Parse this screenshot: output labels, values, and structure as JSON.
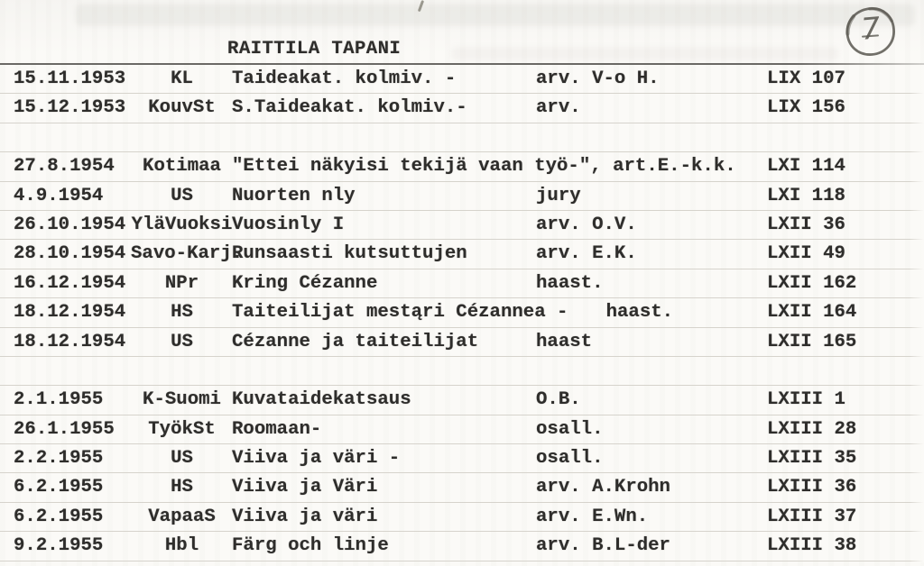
{
  "page_number": "7",
  "card": {
    "title": "RAITTILA TAPANI",
    "table": {
      "rows": [
        {
          "date": "15.11.1953",
          "source": "KL",
          "title": "Taideakat. kolmiv. -",
          "annotation": "arv. V-o H.",
          "reference": "LIX 107"
        },
        {
          "date": "15.12.1953",
          "source": "KouvSt",
          "title": "S.Taideakat. kolmiv.-",
          "annotation": "arv.",
          "reference": "LIX 156"
        },
        {
          "date": "",
          "source": "",
          "title": "",
          "annotation": "",
          "reference": ""
        },
        {
          "date": "27.8.1954",
          "source": "Kotimaa",
          "title": "\"Ettei näkyisi tekijä vaan työ-\", art.E.-k.k.",
          "annotation": "",
          "reference": "LXI 114"
        },
        {
          "date": "4.9.1954",
          "source": "US",
          "title": "Nuorten nly",
          "annotation": "jury",
          "reference": "LXI 118"
        },
        {
          "date": "26.10.1954",
          "source": "YläVuoksi",
          "title": "Vuosinly I",
          "annotation": "arv. O.V.",
          "reference": "LXII 36"
        },
        {
          "date": "28.10.1954",
          "source": "Savo-Karj.",
          "title": "Runsaasti kutsuttujen",
          "annotation": "arv. E.K.",
          "reference": "LXII 49"
        },
        {
          "date": "16.12.1954",
          "source": "NPr",
          "title": "Kring Cézanne",
          "annotation": "haast.",
          "reference": "LXII 162"
        },
        {
          "date": "18.12.1954",
          "source": "HS",
          "title": "Taiteilijat mestąri Cézannea -",
          "annotation": "haast.",
          "reference": "LXII 164"
        },
        {
          "date": "18.12.1954",
          "source": "US",
          "title": "Cézanne ja taiteilijat",
          "annotation": "haast",
          "reference": "LXII 165"
        },
        {
          "date": "",
          "source": "",
          "title": "",
          "annotation": "",
          "reference": ""
        },
        {
          "date": "2.1.1955",
          "source": "K-Suomi",
          "title": "Kuvataidekatsaus",
          "annotation": "O.B.",
          "reference": "LXIII 1"
        },
        {
          "date": "26.1.1955",
          "source": "TyökSt",
          "title": "Roomaan-",
          "annotation": "osall.",
          "reference": "LXIII 28"
        },
        {
          "date": "2.2.1955",
          "source": "US",
          "title": "Viiva ja väri -",
          "annotation": "osall.",
          "reference": "LXIII 35"
        },
        {
          "date": "6.2.1955",
          "source": "HS",
          "title": "Viiva ja Väri",
          "annotation": "arv. A.Krohn",
          "reference": "LXIII 36"
        },
        {
          "date": "6.2.1955",
          "source": "VapaaS",
          "title": "Viiva ja väri",
          "annotation": "arv. E.Wn.",
          "reference": "LXIII 37"
        },
        {
          "date": "9.2.1955",
          "source": "Hbl",
          "title": "Färg och linje",
          "annotation": "arv. B.L-der",
          "reference": "LXIII 38"
        }
      ]
    }
  },
  "colors": {
    "ink": "#2e2d2b",
    "paper": "#fbfaf7",
    "rule_line": "#d6d3cc",
    "header_line": "#52504c",
    "pencil": "#595750"
  }
}
